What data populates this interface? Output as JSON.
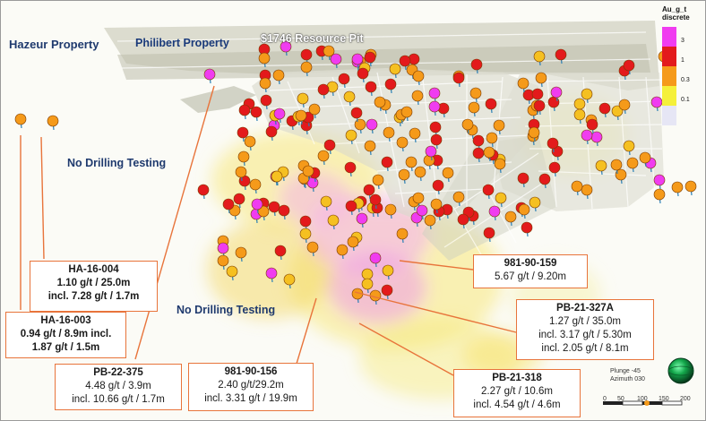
{
  "labels": {
    "hazeur": "Hazeur Property",
    "philibert": "Philibert Property",
    "pit": "$1746 Resource Pit",
    "no_drill_1": "No Drilling Testing",
    "no_drill_2": "No Drilling Testing"
  },
  "callouts": [
    {
      "id": "ha-16-004",
      "lines": [
        "HA-16-004",
        "1.10 g/t / 25.0m",
        "incl. 7.28 g/t / 1.7m"
      ]
    },
    {
      "id": "ha-16-003",
      "lines": [
        "HA-16-003",
        "0.94 g/t / 8.9m incl.",
        "1.87 g/t / 1.5m"
      ]
    },
    {
      "id": "pb-22-375",
      "lines": [
        "PB-22-375",
        "4.48 g/t / 3.9m",
        "incl. 10.66 g/t / 1.7m"
      ]
    },
    {
      "id": "981-90-156",
      "lines": [
        "981-90-156",
        "2.40 g/t/29.2m",
        "incl. 3.31 g/t / 19.9m"
      ]
    },
    {
      "id": "981-90-159",
      "lines": [
        "981-90-159",
        "5.67 g/t / 9.20m"
      ]
    },
    {
      "id": "pb-21-327a",
      "lines": [
        "PB-21-327A",
        "1.27 g/t / 35.0m",
        "incl. 3.17 g/t / 5.30m",
        "incl. 2.05 g/t / 8.1m"
      ]
    },
    {
      "id": "pb-21-318",
      "lines": [
        "PB-21-318",
        "2.27 g/t / 10.6m",
        "incl. 4.54 g/t / 4.6m"
      ]
    }
  ],
  "legend": {
    "title_1": "Au_g_t",
    "title_2": "discrete",
    "classes": [
      {
        "tick": "3",
        "color": "#f03cf0"
      },
      {
        "tick": "1",
        "color": "#e31a1c"
      },
      {
        "tick": "0.3",
        "color": "#f59a1a"
      },
      {
        "tick": "0.1",
        "color": "#f5f03a"
      },
      {
        "tick": "",
        "color": "#e6e6f5"
      }
    ]
  },
  "scale": {
    "plunge": "Plunge -45",
    "azimuth": "Azimuth 030",
    "ticks": [
      "0",
      "50",
      "100",
      "150",
      "200"
    ]
  },
  "colors": {
    "callout_border": "#e8743b",
    "label_dark": "#1f3a6e",
    "pit": "#9a9a8a"
  }
}
